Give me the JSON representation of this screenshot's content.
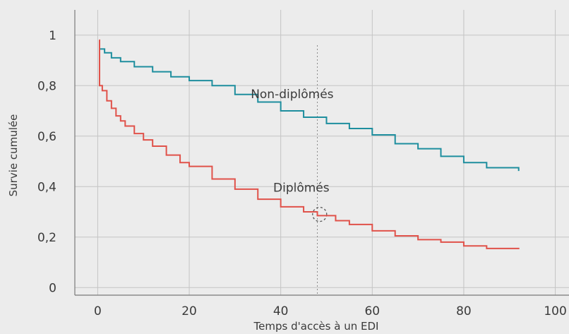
{
  "chart_data": {
    "type": "line",
    "title": "",
    "xlabel": "Temps d'accès à un EDI",
    "ylabel": "Survie cumulée",
    "xlim": [
      -5,
      103
    ],
    "ylim": [
      -0.03,
      1.1
    ],
    "x_ticks": [
      0,
      20,
      40,
      60,
      80,
      100
    ],
    "x_tick_labels": [
      "0",
      "20",
      "40",
      "60",
      "80",
      "100"
    ],
    "y_ticks": [
      0,
      0.2,
      0.4,
      0.6,
      0.8,
      1
    ],
    "y_tick_labels": [
      "0",
      "0,2",
      "0,4",
      "0,6",
      "0,8",
      "1"
    ],
    "grid": true,
    "step": true,
    "series": [
      {
        "name": "Non-diplômés",
        "color": "#1e8e9e",
        "x": [
          0.3,
          1.5,
          3,
          5,
          8,
          12,
          16,
          20,
          25,
          30,
          35,
          40,
          45,
          50,
          55,
          60,
          65,
          70,
          75,
          80,
          85,
          92
        ],
        "y": [
          0.945,
          0.93,
          0.91,
          0.895,
          0.875,
          0.855,
          0.835,
          0.82,
          0.8,
          0.765,
          0.735,
          0.7,
          0.675,
          0.65,
          0.63,
          0.605,
          0.57,
          0.55,
          0.52,
          0.495,
          0.475,
          0.462
        ]
      },
      {
        "name": "Diplômés",
        "color": "#e0524a",
        "x": [
          0.3,
          0.4,
          1,
          2,
          3,
          4,
          5,
          6,
          8,
          10,
          12,
          15,
          18,
          20,
          25,
          30,
          35,
          40,
          45,
          48,
          52,
          55,
          60,
          65,
          70,
          75,
          80,
          85,
          92
        ],
        "y": [
          0.98,
          0.8,
          0.78,
          0.74,
          0.71,
          0.68,
          0.66,
          0.64,
          0.61,
          0.585,
          0.56,
          0.525,
          0.495,
          0.48,
          0.43,
          0.39,
          0.35,
          0.32,
          0.3,
          0.285,
          0.265,
          0.25,
          0.225,
          0.205,
          0.19,
          0.18,
          0.165,
          0.155,
          0.152
        ]
      }
    ],
    "annotations": [
      {
        "text": "Non-diplômés",
        "x": 42.5,
        "y": 0.75
      },
      {
        "text": "Diplômés",
        "x": 44.5,
        "y": 0.38
      }
    ],
    "reference_line_x": 48,
    "marker_circle": {
      "x": 48.5,
      "y": 0.29
    }
  }
}
